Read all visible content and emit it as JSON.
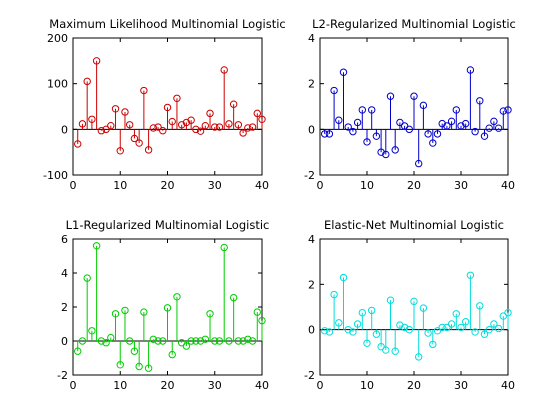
{
  "chart_data": [
    {
      "type": "stem",
      "title": "Maximum Likelihood Multinomial Logistic",
      "color": "#cc0000",
      "xlim": [
        0,
        40
      ],
      "ylim": [
        -100,
        200
      ],
      "xticks": [
        0,
        10,
        20,
        30,
        40
      ],
      "yticks": [
        -100,
        0,
        100,
        200
      ],
      "x": [
        1,
        2,
        3,
        4,
        5,
        6,
        7,
        8,
        9,
        10,
        11,
        12,
        13,
        14,
        15,
        16,
        17,
        18,
        19,
        20,
        21,
        22,
        23,
        24,
        25,
        26,
        27,
        28,
        29,
        30,
        31,
        32,
        33,
        34,
        35,
        36,
        37,
        38,
        39,
        40
      ],
      "values": [
        -32,
        12,
        105,
        22,
        150,
        -3,
        0,
        8,
        45,
        -47,
        38,
        10,
        -20,
        -30,
        85,
        -45,
        3,
        5,
        -3,
        48,
        17,
        68,
        10,
        15,
        20,
        0,
        -4,
        8,
        35,
        5,
        5,
        130,
        12,
        55,
        10,
        -8,
        3,
        5,
        35,
        22
      ]
    },
    {
      "type": "stem",
      "title": "L2-Regularized Multinomial Logistic",
      "color": "#0000cc",
      "xlim": [
        0,
        40
      ],
      "ylim": [
        -2,
        4
      ],
      "xticks": [
        0,
        10,
        20,
        30,
        40
      ],
      "yticks": [
        -2,
        0,
        2,
        4
      ],
      "x": [
        1,
        2,
        3,
        4,
        5,
        6,
        7,
        8,
        9,
        10,
        11,
        12,
        13,
        14,
        15,
        16,
        17,
        18,
        19,
        20,
        21,
        22,
        23,
        24,
        25,
        26,
        27,
        28,
        29,
        30,
        31,
        32,
        33,
        34,
        35,
        36,
        37,
        38,
        39,
        40
      ],
      "values": [
        -0.2,
        -0.2,
        1.7,
        0.4,
        2.5,
        0.1,
        -0.1,
        0.3,
        0.85,
        -0.55,
        0.85,
        -0.3,
        -1.0,
        -1.1,
        1.45,
        -0.9,
        0.3,
        0.15,
        0.0,
        1.45,
        -1.5,
        1.05,
        -0.2,
        -0.6,
        -0.2,
        0.25,
        0.15,
        0.35,
        0.85,
        0.15,
        0.25,
        2.6,
        -0.1,
        1.25,
        -0.3,
        0.05,
        0.35,
        0.05,
        0.8,
        0.85
      ]
    },
    {
      "type": "stem",
      "title": "L1-Regularized Multinomial Logistic",
      "color": "#00cc00",
      "xlim": [
        0,
        40
      ],
      "ylim": [
        -2,
        6
      ],
      "xticks": [
        0,
        10,
        20,
        30,
        40
      ],
      "yticks": [
        -2,
        0,
        2,
        4,
        6
      ],
      "x": [
        1,
        2,
        3,
        4,
        5,
        6,
        7,
        8,
        9,
        10,
        11,
        12,
        13,
        14,
        15,
        16,
        17,
        18,
        19,
        20,
        21,
        22,
        23,
        24,
        25,
        26,
        27,
        28,
        29,
        30,
        31,
        32,
        33,
        34,
        35,
        36,
        37,
        38,
        39,
        40
      ],
      "values": [
        -0.6,
        0.0,
        3.7,
        0.6,
        5.6,
        0.0,
        -0.1,
        0.2,
        1.6,
        -1.4,
        1.8,
        0.0,
        -0.6,
        -1.5,
        1.7,
        -1.6,
        0.1,
        0.0,
        0.0,
        1.95,
        -0.8,
        2.6,
        -0.1,
        -0.3,
        0.0,
        0.0,
        0.0,
        0.1,
        1.6,
        0.0,
        0.0,
        5.5,
        0.0,
        2.55,
        0.0,
        0.0,
        0.1,
        0.0,
        1.7,
        1.2
      ]
    },
    {
      "type": "stem",
      "title": "Elastic-Net Multinomial Logistic",
      "color": "#00dddd",
      "xlim": [
        0,
        40
      ],
      "ylim": [
        -2,
        4
      ],
      "xticks": [
        0,
        10,
        20,
        30,
        40
      ],
      "yticks": [
        -2,
        0,
        2,
        4
      ],
      "x": [
        1,
        2,
        3,
        4,
        5,
        6,
        7,
        8,
        9,
        10,
        11,
        12,
        13,
        14,
        15,
        16,
        17,
        18,
        19,
        20,
        21,
        22,
        23,
        24,
        25,
        26,
        27,
        28,
        29,
        30,
        31,
        32,
        33,
        34,
        35,
        36,
        37,
        38,
        39,
        40
      ],
      "values": [
        -0.05,
        -0.1,
        1.55,
        0.3,
        2.3,
        0.0,
        -0.1,
        0.25,
        0.75,
        -0.6,
        0.85,
        -0.2,
        -0.75,
        -0.9,
        1.3,
        -0.95,
        0.2,
        0.1,
        0.0,
        1.25,
        -1.2,
        0.95,
        -0.15,
        -0.65,
        -0.05,
        0.1,
        0.1,
        0.25,
        0.7,
        0.1,
        0.35,
        2.4,
        -0.1,
        1.05,
        -0.2,
        0.0,
        0.25,
        0.05,
        0.6,
        0.75
      ]
    }
  ]
}
